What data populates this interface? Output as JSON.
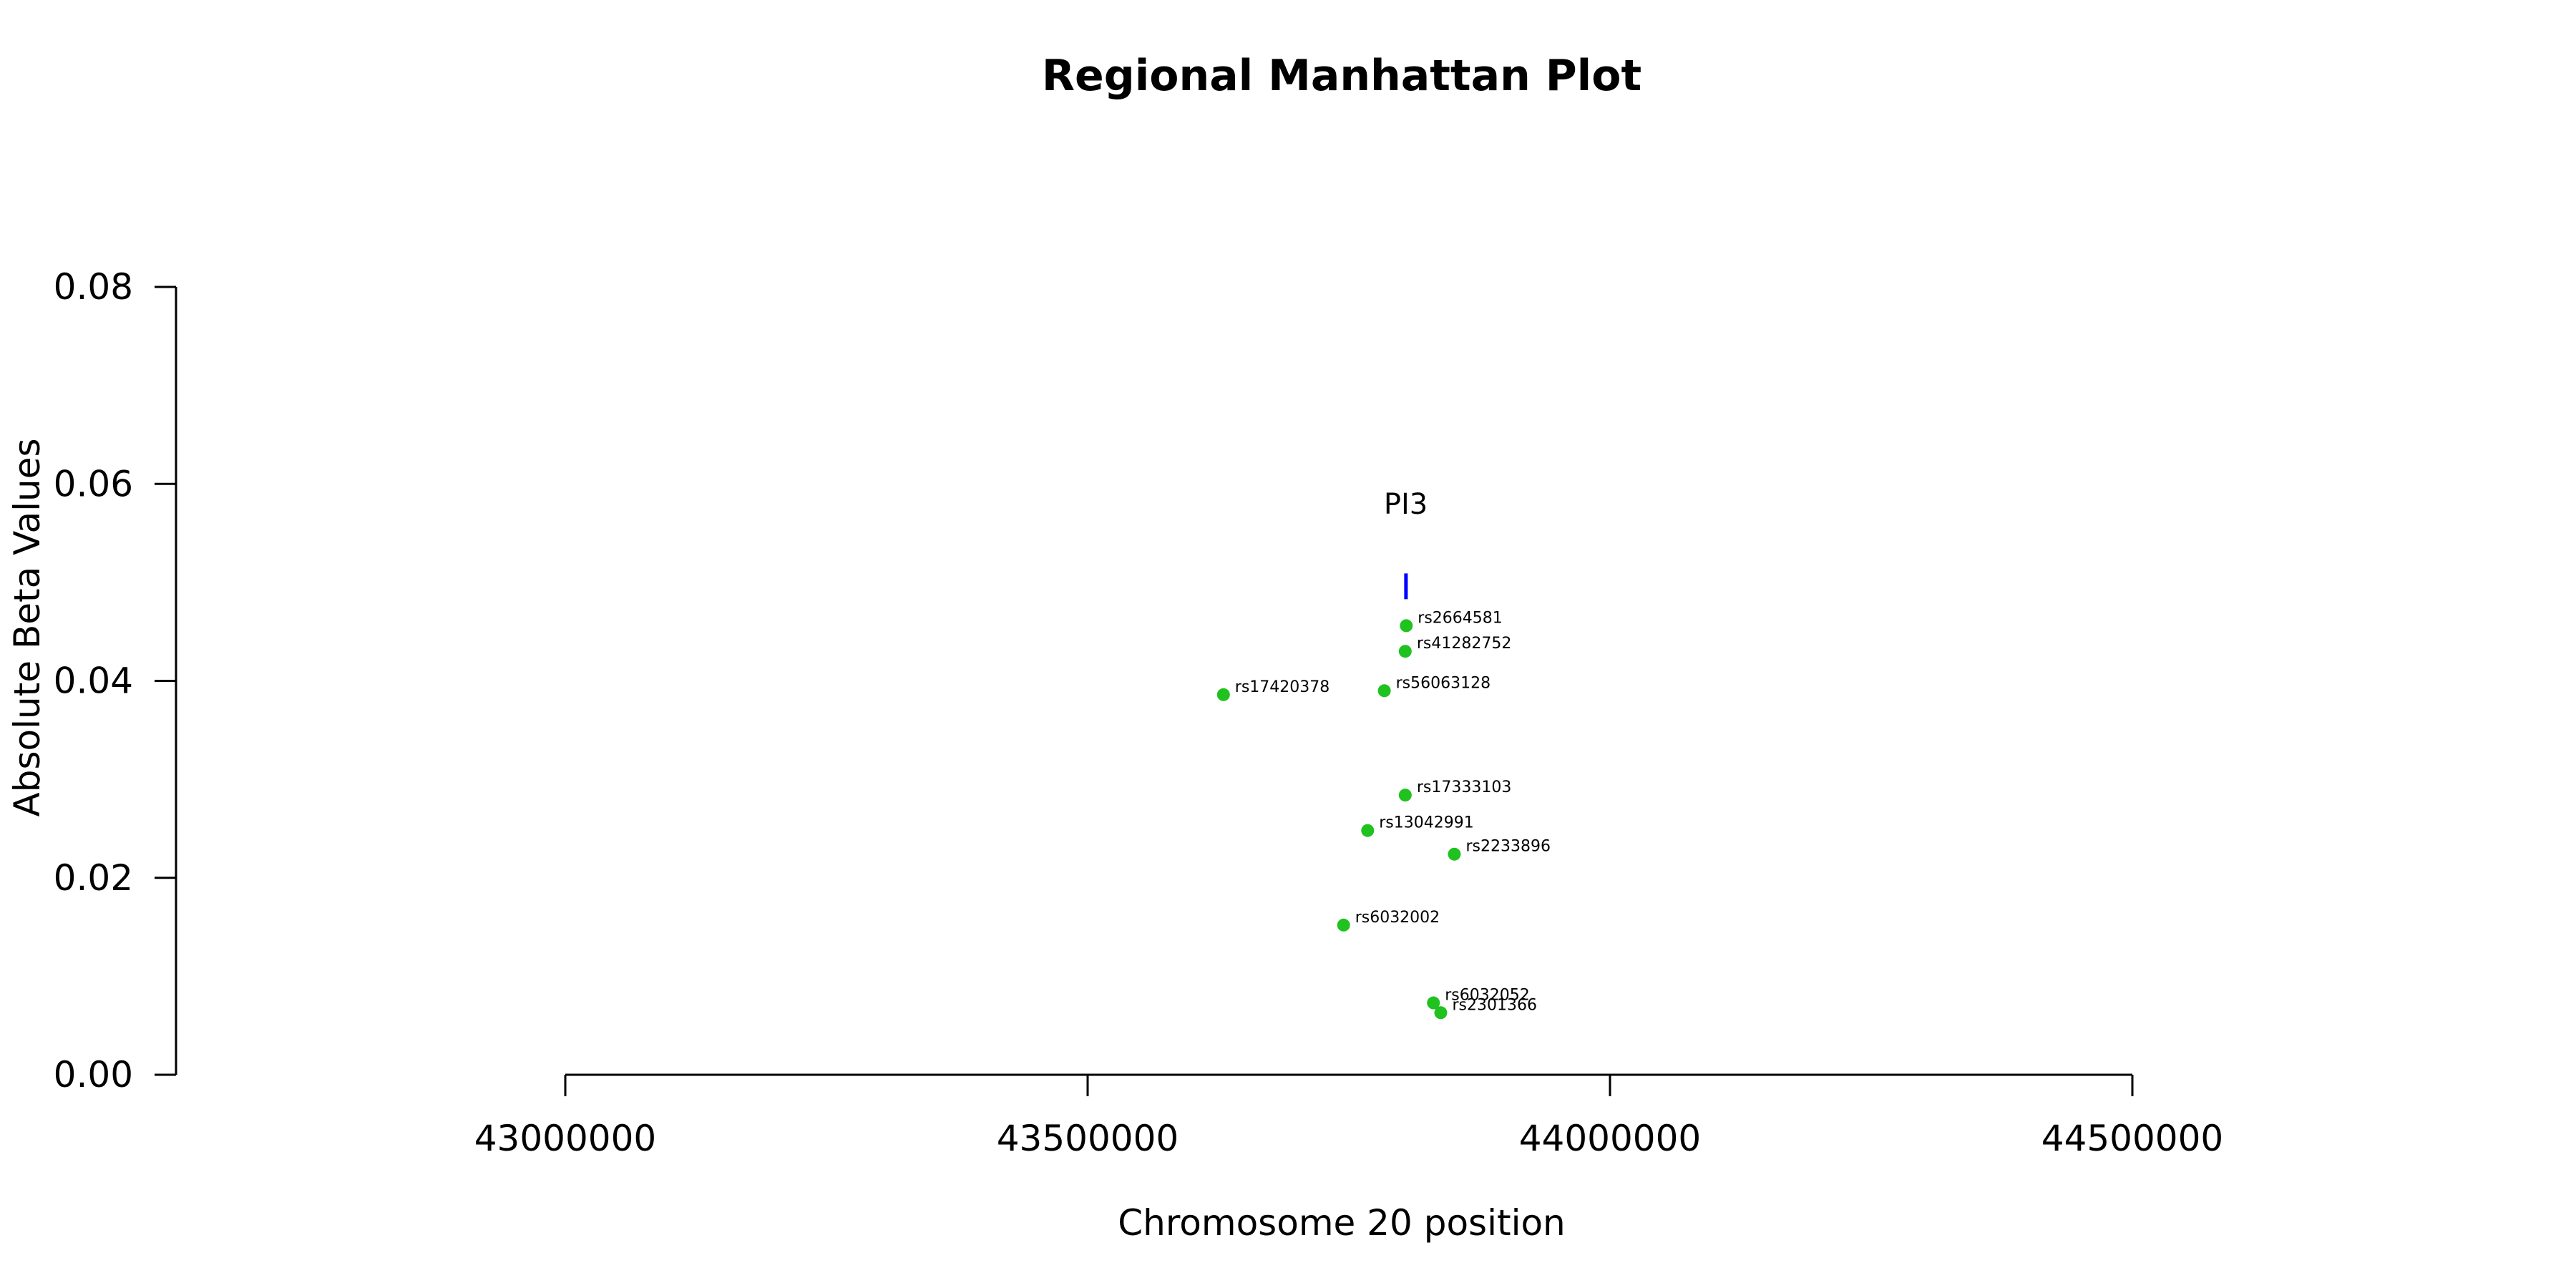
{
  "chart_data": {
    "type": "scatter",
    "title": "Regional Manhattan Plot",
    "xlabel": "Chromosome 20 position",
    "ylabel": "Absolute Beta Values",
    "xlim": [
      43000000,
      44500000
    ],
    "ylim": [
      0,
      0.08
    ],
    "x_ticks": [
      43000000,
      43500000,
      44000000,
      44500000
    ],
    "x_tick_labels": [
      "43000000",
      "43500000",
      "44000000",
      "44500000"
    ],
    "y_ticks": [
      0,
      0.02,
      0.04,
      0.06,
      0.08
    ],
    "y_tick_labels": [
      "0.00",
      "0.02",
      "0.04",
      "0.06",
      "0.08"
    ],
    "point_color": "#1fc21f",
    "gene_color": "#0000ff",
    "points": [
      {
        "label": "rs2664581",
        "x": 43805000,
        "y": 0.0456
      },
      {
        "label": "rs41282752",
        "x": 43804000,
        "y": 0.043
      },
      {
        "label": "rs17420378",
        "x": 43630000,
        "y": 0.0386
      },
      {
        "label": "rs56063128",
        "x": 43784000,
        "y": 0.039
      },
      {
        "label": "rs17333103",
        "x": 43804000,
        "y": 0.0284
      },
      {
        "label": "rs13042991",
        "x": 43768000,
        "y": 0.0248
      },
      {
        "label": "rs2233896",
        "x": 43851000,
        "y": 0.0224
      },
      {
        "label": "rs6032002",
        "x": 43745000,
        "y": 0.0152
      },
      {
        "label": "rs6032052",
        "x": 43831000,
        "y": 0.0073
      },
      {
        "label": "rs2301366",
        "x": 43838000,
        "y": 0.0063
      }
    ],
    "genes": [
      {
        "name": "PI3",
        "start": 43803000,
        "end": 43806000,
        "y": 0.0496,
        "label_y": 0.058
      }
    ]
  }
}
